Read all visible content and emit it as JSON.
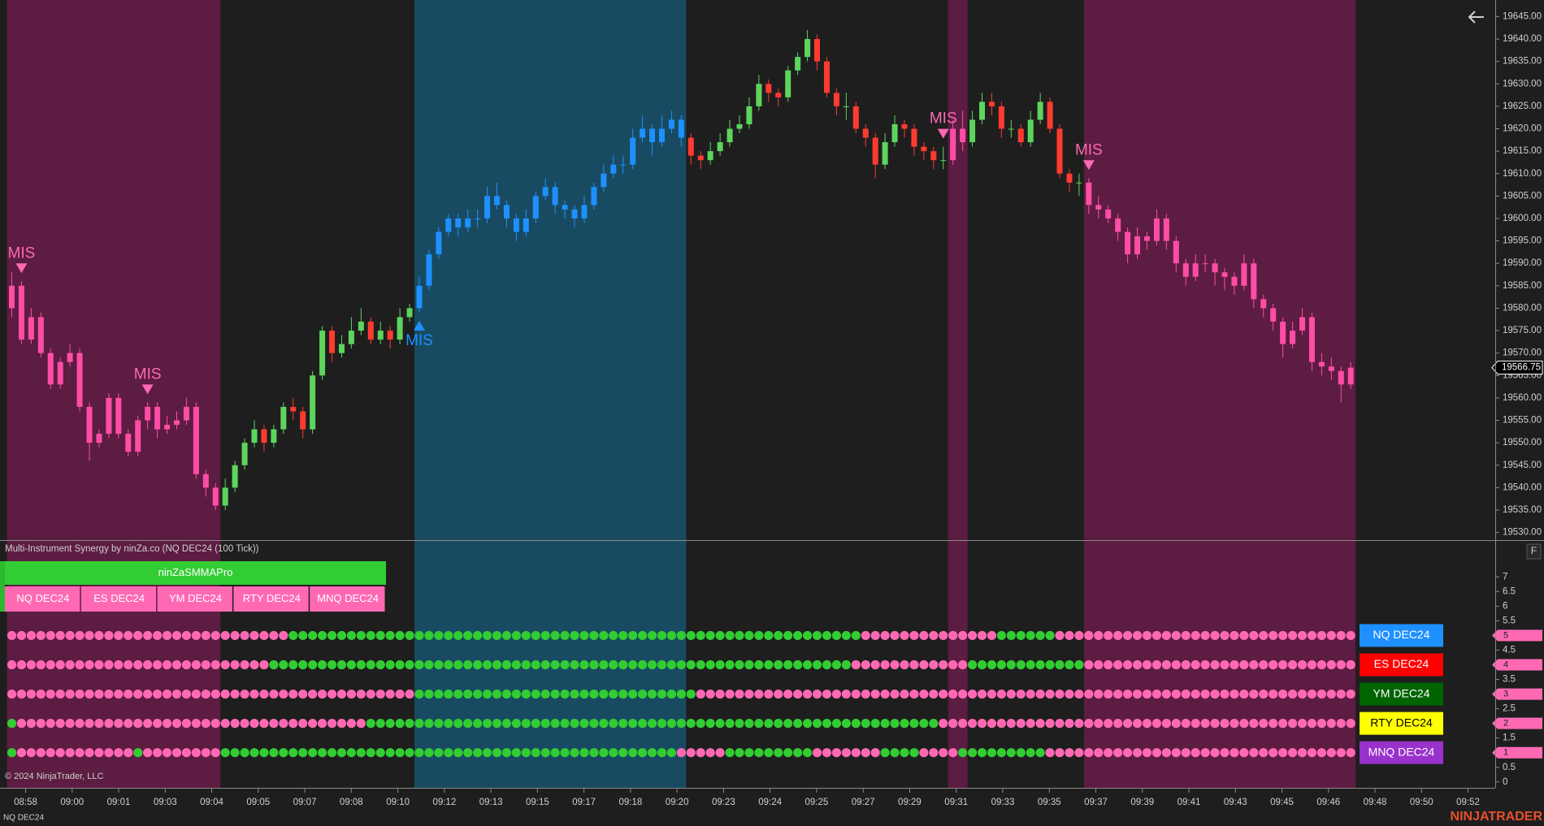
{
  "chart_data": [
    {
      "type": "candlestick",
      "ylim": [
        19528.3,
        19648.7
      ],
      "yticks": [
        {
          "value": 19530,
          "label": "19530.00"
        },
        {
          "value": 19535,
          "label": "19535.00"
        },
        {
          "value": 19540,
          "label": "19540.00"
        },
        {
          "value": 19545,
          "label": "19545.00"
        },
        {
          "value": 19550,
          "label": "19550.00"
        },
        {
          "value": 19555,
          "label": "19555.00"
        },
        {
          "value": 19560,
          "label": "19560.00"
        },
        {
          "value": 19565,
          "label": "19565.00"
        },
        {
          "value": 19570,
          "label": "19570.00"
        },
        {
          "value": 19575,
          "label": "19575.00"
        },
        {
          "value": 19580,
          "label": "19580.00"
        },
        {
          "value": 19585,
          "label": "19585.00"
        },
        {
          "value": 19590,
          "label": "19590.00"
        },
        {
          "value": 19595,
          "label": "19595.00"
        },
        {
          "value": 19600,
          "label": "19600.00"
        },
        {
          "value": 19605,
          "label": "19605.00"
        },
        {
          "value": 19610,
          "label": "19610.00"
        },
        {
          "value": 19615,
          "label": "19615.00"
        },
        {
          "value": 19620,
          "label": "19620.00"
        },
        {
          "value": 19625,
          "label": "19625.00"
        },
        {
          "value": 19630,
          "label": "19630.00"
        },
        {
          "value": 19635,
          "label": "19635.00"
        },
        {
          "value": 19640,
          "label": "19640.00"
        },
        {
          "value": 19645,
          "label": "19645.00"
        }
      ],
      "candles": [
        [
          19580,
          19588,
          19578,
          19585
        ],
        [
          19585,
          19586,
          19572,
          19573
        ],
        [
          19573,
          19580,
          19572,
          19578
        ],
        [
          19578,
          19579,
          19569,
          19570
        ],
        [
          19570,
          19571,
          19562,
          19563
        ],
        [
          19563,
          19569,
          19562,
          19568
        ],
        [
          19568,
          19572,
          19567,
          19570
        ],
        [
          19570,
          19571,
          19557,
          19558
        ],
        [
          19558,
          19559,
          19546,
          19550
        ],
        [
          19550,
          19553,
          19549,
          19552
        ],
        [
          19552,
          19561,
          19551,
          19560
        ],
        [
          19560,
          19561,
          19551,
          19552
        ],
        [
          19552,
          19553,
          19547,
          19548
        ],
        [
          19548,
          19556,
          19547,
          19555
        ],
        [
          19555,
          19559,
          19553,
          19558
        ],
        [
          19558,
          19559,
          19551,
          19553
        ],
        [
          19553,
          19556,
          19552,
          19554
        ],
        [
          19554,
          19557,
          19553,
          19555
        ],
        [
          19555,
          19560,
          19554,
          19558
        ],
        [
          19558,
          19559,
          19542,
          19543
        ],
        [
          19543,
          19544,
          19538,
          19540
        ],
        [
          19540,
          19541,
          19535,
          19536
        ],
        [
          19536,
          19542,
          19535,
          19540
        ],
        [
          19540,
          19546,
          19539,
          19545
        ],
        [
          19545,
          19551,
          19544,
          19550
        ],
        [
          19550,
          19555,
          19549,
          19553
        ],
        [
          19553,
          19554,
          19548,
          19550
        ],
        [
          19550,
          19554,
          19549,
          19553
        ],
        [
          19553,
          19559,
          19552,
          19558
        ],
        [
          19558,
          19560,
          19555,
          19557
        ],
        [
          19557,
          19558,
          19551,
          19553
        ],
        [
          19553,
          19566,
          19552,
          19565
        ],
        [
          19565,
          19576,
          19564,
          19575
        ],
        [
          19575,
          19576,
          19568,
          19570
        ],
        [
          19570,
          19574,
          19569,
          19572
        ],
        [
          19572,
          19578,
          19571,
          19575
        ],
        [
          19575,
          19580,
          19574,
          19577
        ],
        [
          19577,
          19578,
          19572,
          19573
        ],
        [
          19573,
          19577,
          19572,
          19575
        ],
        [
          19575,
          19576,
          19571,
          19573
        ],
        [
          19573,
          19580,
          19572,
          19578
        ],
        [
          19578,
          19581,
          19577,
          19580
        ],
        [
          19580,
          19587,
          19579,
          19585
        ],
        [
          19585,
          19593,
          19584,
          19592
        ],
        [
          19592,
          19598,
          19591,
          19597
        ],
        [
          19597,
          19601,
          19596,
          19600
        ],
        [
          19600,
          19601,
          19596,
          19598
        ],
        [
          19598,
          19602,
          19597,
          19600
        ],
        [
          19600,
          19602,
          19598,
          19600
        ],
        [
          19600,
          19607,
          19599,
          19605
        ],
        [
          19605,
          19608,
          19602,
          19603
        ],
        [
          19603,
          19604,
          19598,
          19600
        ],
        [
          19600,
          19601,
          19595,
          19597
        ],
        [
          19597,
          19602,
          19596,
          19600
        ],
        [
          19600,
          19606,
          19599,
          19605
        ],
        [
          19605,
          19609,
          19604,
          19607
        ],
        [
          19607,
          19608,
          19601,
          19603
        ],
        [
          19603,
          19604,
          19600,
          19602
        ],
        [
          19602,
          19603,
          19598,
          19600
        ],
        [
          19600,
          19605,
          19599,
          19603
        ],
        [
          19603,
          19608,
          19602,
          19607
        ],
        [
          19607,
          19612,
          19606,
          19610
        ],
        [
          19610,
          19614,
          19609,
          19612
        ],
        [
          19612,
          19614,
          19610,
          19612
        ],
        [
          19612,
          19620,
          19611,
          19618
        ],
        [
          19618,
          19623,
          19617,
          19620
        ],
        [
          19620,
          19621,
          19614,
          19617
        ],
        [
          19617,
          19623,
          19616,
          19620
        ],
        [
          19620,
          19624,
          19619,
          19622
        ],
        [
          19622,
          19623,
          19616,
          19618
        ],
        [
          19618,
          19619,
          19612,
          19614
        ],
        [
          19614,
          19615,
          19611,
          19613
        ],
        [
          19613,
          19617,
          19612,
          19615
        ],
        [
          19615,
          19619,
          19614,
          19617
        ],
        [
          19617,
          19622,
          19616,
          19620
        ],
        [
          19620,
          19623,
          19619,
          19621
        ],
        [
          19621,
          19627,
          19620,
          19625
        ],
        [
          19625,
          19632,
          19624,
          19630
        ],
        [
          19630,
          19631,
          19626,
          19628
        ],
        [
          19628,
          19629,
          19625,
          19627
        ],
        [
          19627,
          19634,
          19626,
          19633
        ],
        [
          19633,
          19637,
          19632,
          19636
        ],
        [
          19636,
          19642,
          19635,
          19640
        ],
        [
          19640,
          19641,
          19633,
          19635
        ],
        [
          19635,
          19636,
          19627,
          19628
        ],
        [
          19628,
          19629,
          19623,
          19625
        ],
        [
          19625,
          19628,
          19622,
          19625
        ],
        [
          19625,
          19626,
          19619,
          19620
        ],
        [
          19620,
          19621,
          19616,
          19618
        ],
        [
          19618,
          19619,
          19609,
          19612
        ],
        [
          19612,
          19619,
          19611,
          19617
        ],
        [
          19617,
          19623,
          19616,
          19621
        ],
        [
          19621,
          19622,
          19618,
          19620
        ],
        [
          19620,
          19621,
          19614,
          19616
        ],
        [
          19616,
          19617,
          19613,
          19615
        ],
        [
          19615,
          19616,
          19611,
          19613
        ],
        [
          19613,
          19616,
          19611,
          19613
        ],
        [
          19613,
          19622,
          19612,
          19620
        ],
        [
          19620,
          19624,
          19615,
          19617
        ],
        [
          19617,
          19624,
          19616,
          19622
        ],
        [
          19622,
          19628,
          19621,
          19626
        ],
        [
          19626,
          19628,
          19623,
          19625
        ],
        [
          19625,
          19626,
          19618,
          19620
        ],
        [
          19620,
          19622,
          19618,
          19620
        ],
        [
          19620,
          19621,
          19616,
          19617
        ],
        [
          19617,
          19624,
          19616,
          19622
        ],
        [
          19622,
          19628,
          19621,
          19626
        ],
        [
          19626,
          19627,
          19619,
          19620
        ],
        [
          19620,
          19621,
          19609,
          19610
        ],
        [
          19610,
          19611,
          19606,
          19608
        ],
        [
          19608,
          19610,
          19605,
          19608
        ],
        [
          19608,
          19609,
          19601,
          19603
        ],
        [
          19603,
          19605,
          19600,
          19602
        ],
        [
          19602,
          19603,
          19599,
          19600
        ],
        [
          19600,
          19601,
          19595,
          19597
        ],
        [
          19597,
          19598,
          19590,
          19592
        ],
        [
          19592,
          19598,
          19591,
          19596
        ],
        [
          19596,
          19597,
          19593,
          19595
        ],
        [
          19595,
          19602,
          19594,
          19600
        ],
        [
          19600,
          19601,
          19593,
          19595
        ],
        [
          19595,
          19596,
          19588,
          19590
        ],
        [
          19590,
          19591,
          19585,
          19587
        ],
        [
          19587,
          19592,
          19586,
          19590
        ],
        [
          19590,
          19592,
          19588,
          19590
        ],
        [
          19590,
          19591,
          19585,
          19588
        ],
        [
          19588,
          19589,
          19584,
          19587
        ],
        [
          19587,
          19588,
          19583,
          19585
        ],
        [
          19585,
          19592,
          19584,
          19590
        ],
        [
          19590,
          19591,
          19580,
          19582
        ],
        [
          19582,
          19583,
          19578,
          19580
        ],
        [
          19580,
          19581,
          19575,
          19577
        ],
        [
          19577,
          19578,
          19569,
          19572
        ],
        [
          19572,
          19577,
          19571,
          19575
        ],
        [
          19575,
          19580,
          19574,
          19578
        ],
        [
          19578,
          19579,
          19566,
          19568
        ],
        [
          19568,
          19570,
          19565,
          19567
        ],
        [
          19567,
          19569,
          19564,
          19566
        ],
        [
          19566,
          19567,
          19559,
          19563
        ],
        [
          19563,
          19568,
          19562,
          19566.75
        ]
      ],
      "up_color": "#5dd55d",
      "down_color": "#ff3b30",
      "regimes": [
        [
          "S",
          22
        ],
        [
          "N",
          20
        ],
        [
          "B",
          28
        ],
        [
          "N",
          27
        ],
        [
          "S",
          2
        ],
        [
          "N",
          12
        ],
        [
          "S",
          28
        ]
      ],
      "regime_styles": {
        "S": {
          "candle": "#ff4da6",
          "bg": "#5d1c41"
        },
        "B": {
          "candle": "#1e90ff",
          "bg": "#184b61"
        }
      },
      "signals": [
        {
          "bar": 1,
          "text": "MIS",
          "direction": "down",
          "color": "#ff69b4"
        },
        {
          "bar": 14,
          "text": "MIS",
          "direction": "down",
          "color": "#ff69b4"
        },
        {
          "bar": 42,
          "text": "MIS",
          "direction": "up",
          "color": "#1e90ff"
        },
        {
          "bar": 96,
          "text": "MIS",
          "direction": "down",
          "color": "#ff69b4"
        },
        {
          "bar": 111,
          "text": "MIS",
          "direction": "down",
          "color": "#ff69b4"
        }
      ],
      "time_labels": [
        "08:58",
        "09:00",
        "09:01",
        "09:03",
        "09:04",
        "09:05",
        "09:07",
        "09:08",
        "09:10",
        "09:12",
        "09:13",
        "09:15",
        "09:17",
        "09:18",
        "09:20",
        "09:23",
        "09:24",
        "09:25",
        "09:27",
        "09:29",
        "09:31",
        "09:33",
        "09:35",
        "09:37",
        "09:39",
        "09:41",
        "09:43",
        "09:45",
        "09:46",
        "09:48",
        "09:50",
        "09:52"
      ]
    },
    {
      "type": "dots",
      "title": "Multi-Instrument Synergy by ninZa.co (NQ DEC24 (100 Tick))",
      "header": "ninZaSMMAPro",
      "header_color": "#32cd32",
      "tabs": [
        "NQ DEC24",
        "ES DEC24",
        "YM DEC24",
        "RTY DEC24",
        "MNQ DEC24"
      ],
      "tab_color": "#ff69b4",
      "ylim": [
        -0.2,
        8.2
      ],
      "yticks": [
        0,
        0.5,
        1,
        1.5,
        2,
        2.5,
        3,
        3.5,
        4,
        4.5,
        5,
        5.5,
        6,
        6.5,
        7
      ],
      "run_colors": {
        "P": "#ff69b4",
        "G": "#32cd32"
      },
      "rows": [
        {
          "name": "NQ DEC24",
          "color": "#1e90ff",
          "text_color": "#ffffff",
          "value": 5,
          "runs": [
            [
              "P",
              29
            ],
            [
              "G",
              59
            ],
            [
              "P",
              14
            ],
            [
              "G",
              6
            ],
            [
              "P",
              31
            ]
          ]
        },
        {
          "name": "ES DEC24",
          "color": "#ff0000",
          "text_color": "#ffffff",
          "value": 4,
          "runs": [
            [
              "P",
              27
            ],
            [
              "G",
              60
            ],
            [
              "P",
              12
            ],
            [
              "G",
              12
            ],
            [
              "P",
              28
            ]
          ]
        },
        {
          "name": "YM DEC24",
          "color": "#006400",
          "text_color": "#ffffff",
          "value": 3,
          "runs": [
            [
              "P",
              42
            ],
            [
              "G",
              29
            ],
            [
              "P",
              68
            ]
          ]
        },
        {
          "name": "RTY DEC24",
          "color": "#ffff00",
          "text_color": "#000000",
          "value": 2,
          "runs": [
            [
              "G",
              1
            ],
            [
              "P",
              36
            ],
            [
              "G",
              59
            ],
            [
              "P",
              43
            ]
          ]
        },
        {
          "name": "MNQ DEC24",
          "color": "#9932cc",
          "text_color": "#ffffff",
          "value": 1,
          "runs": [
            [
              "G",
              1
            ],
            [
              "P",
              12
            ],
            [
              "G",
              1
            ],
            [
              "P",
              8
            ],
            [
              "G",
              47
            ],
            [
              "P",
              5
            ],
            [
              "G",
              9
            ],
            [
              "P",
              7
            ],
            [
              "G",
              4
            ],
            [
              "P",
              4
            ],
            [
              "G",
              9
            ],
            [
              "P",
              32
            ]
          ]
        }
      ]
    }
  ],
  "copyright": "© 2024 NinjaTrader, LLC",
  "instrument": "NQ DEC24",
  "brand": "NINJATRADER",
  "f_button": "F"
}
